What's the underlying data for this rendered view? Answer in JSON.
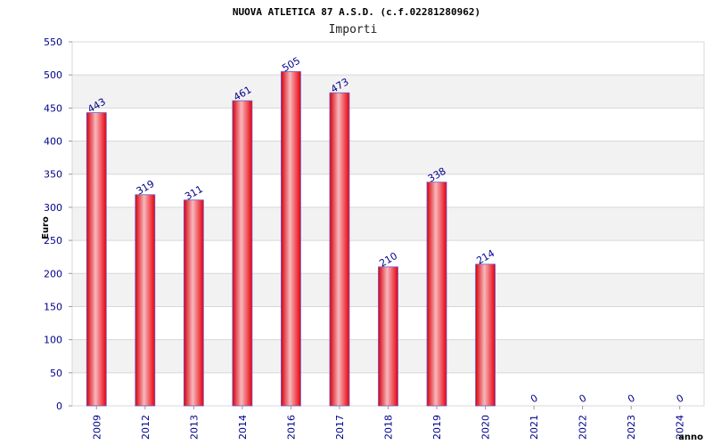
{
  "chart_data": {
    "type": "bar",
    "title": "NUOVA ATLETICA 87 A.S.D. (c.f.02281280962)",
    "subtitle": "Importi",
    "xlabel": "anno",
    "ylabel": "Euro",
    "categories": [
      "2009",
      "2012",
      "2013",
      "2014",
      "2016",
      "2017",
      "2018",
      "2019",
      "2020",
      "2021",
      "2022",
      "2023",
      "2024"
    ],
    "values": [
      443,
      319,
      311,
      461,
      505,
      473,
      210,
      338,
      214,
      0,
      0,
      0,
      0
    ],
    "value_labels": [
      "443",
      "319",
      "311",
      "461",
      "505",
      "473",
      "210",
      "338",
      "214",
      "0",
      "0",
      "0",
      "0"
    ],
    "y_ticks": [
      "0",
      "50",
      "100",
      "150",
      "200",
      "250",
      "300",
      "350",
      "400",
      "450",
      "500",
      "550"
    ],
    "ylim": [
      0,
      550
    ],
    "grid": "horizontal",
    "legend": "none",
    "colors": {
      "bar": "#e8000b",
      "bar_highlight": "#f7b8bc",
      "bar_outline": "#6a5acd",
      "band": "#f2f2f2",
      "grid": "#d8d8d8",
      "tick_text": "#00008b"
    }
  }
}
